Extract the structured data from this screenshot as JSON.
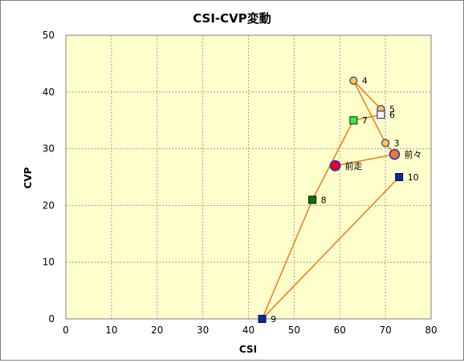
{
  "chart_data": {
    "type": "scatter",
    "title": "CSI-CVP変動",
    "xlabel": "CSI",
    "ylabel": "CVP",
    "xlim": [
      0,
      80
    ],
    "ylim": [
      0,
      50
    ],
    "xticks": [
      0,
      10,
      20,
      30,
      40,
      50,
      60,
      70,
      80
    ],
    "yticks": [
      0,
      10,
      20,
      30,
      40,
      50
    ],
    "grid": true,
    "legend": "none",
    "colors": {
      "plot_background": "#ffffcc",
      "line": "#f07818",
      "grid": "#a0a0a0",
      "marker_circle_yellow": "#ffcc33",
      "marker_circle_red": "#ff0000",
      "marker_circle_orange": "#f07828",
      "marker_edge": "#3030c0",
      "marker_square_blue": "#0a2a9a",
      "marker_square_green": "#30ee40",
      "marker_square_darkgreen": "#107010",
      "marker_square_white": "#ffffff"
    },
    "points": [
      {
        "label": "前走",
        "x": 59,
        "y": 27,
        "marker": "circle-red"
      },
      {
        "label": "前々",
        "x": 72,
        "y": 29,
        "marker": "circle-orange"
      },
      {
        "label": "3",
        "x": 70,
        "y": 31,
        "marker": "circle-yellow"
      },
      {
        "label": "4",
        "x": 63,
        "y": 42,
        "marker": "circle-yellow"
      },
      {
        "label": "5",
        "x": 69,
        "y": 37,
        "marker": "circle-yellow"
      },
      {
        "label": "6",
        "x": 69,
        "y": 36,
        "marker": "square-white"
      },
      {
        "label": "7",
        "x": 63,
        "y": 35,
        "marker": "square-green"
      },
      {
        "label": "8",
        "x": 54,
        "y": 21,
        "marker": "square-darkgreen"
      },
      {
        "label": "9",
        "x": 43,
        "y": 0,
        "marker": "square-blue"
      },
      {
        "label": "10",
        "x": 73,
        "y": 25,
        "marker": "square-blue"
      }
    ],
    "line_path": [
      [
        59,
        27
      ],
      [
        72,
        29
      ],
      [
        70,
        31
      ],
      [
        63,
        42
      ],
      [
        69,
        37
      ],
      [
        69,
        36
      ],
      [
        63,
        35
      ],
      [
        54,
        21
      ],
      [
        43,
        0
      ],
      [
        73,
        25
      ]
    ]
  }
}
